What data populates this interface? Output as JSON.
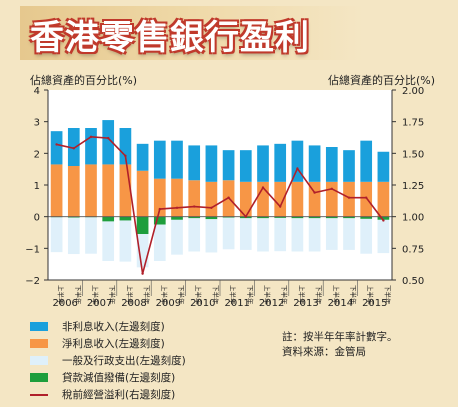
{
  "title": "香港零售銀行盈利",
  "left_axis_label": "佔總資產的百分比(%)",
  "right_axis_label": "佔總資產的百分比(%)",
  "note_lines": [
    "註：按半年年率計數字。",
    "資料來源：金管局"
  ],
  "colors": {
    "non_interest": "#1aa0dc",
    "net_interest": "#f79646",
    "opex": "#dff0fa",
    "provisions": "#1e9e3c",
    "profit_line": "#b0202a"
  },
  "chart_data": {
    "type": "bar",
    "stacked": true,
    "categories": [
      "上半年",
      "下半年",
      "上半年",
      "下半年",
      "上半年",
      "下半年",
      "上半年",
      "下半年",
      "上半年",
      "下半年",
      "上半年",
      "下半年",
      "上半年",
      "下半年",
      "上半年",
      "下半年",
      "上半年",
      "下半年",
      "上半年",
      "下半年"
    ],
    "year_labels": [
      "2006",
      "2007",
      "2008",
      "2009",
      "2010",
      "2011",
      "2012",
      "2013",
      "2014",
      "2015"
    ],
    "left_ylim": [
      -2,
      4
    ],
    "left_yticks": [
      "−2",
      "−1",
      "0",
      "1",
      "2",
      "3",
      "4"
    ],
    "right_ylim": [
      0.5,
      2.0
    ],
    "right_yticks": [
      "0.50",
      "0.75",
      "1.00",
      "1.25",
      "1.50",
      "1.75",
      "2.00"
    ],
    "series": [
      {
        "name": "非利息收入(左邊刻度)",
        "axis": "left",
        "values": [
          1.05,
          1.2,
          1.15,
          1.4,
          1.15,
          0.85,
          1.2,
          1.2,
          1.1,
          1.15,
          0.95,
          1.0,
          1.15,
          1.2,
          1.3,
          1.15,
          1.1,
          1.0,
          1.3,
          0.95
        ]
      },
      {
        "name": "淨利息收入(左邊刻度)",
        "axis": "left",
        "values": [
          1.65,
          1.6,
          1.65,
          1.65,
          1.65,
          1.45,
          1.2,
          1.2,
          1.15,
          1.1,
          1.15,
          1.1,
          1.1,
          1.1,
          1.1,
          1.1,
          1.1,
          1.1,
          1.1,
          1.1
        ]
      },
      {
        "name": "一般及行政支出(左邊刻度)",
        "axis": "left",
        "values": [
          -1.1,
          -1.15,
          -1.15,
          -1.25,
          -1.3,
          -1.05,
          -1.15,
          -1.1,
          -1.05,
          -1.05,
          -1.0,
          -1.0,
          -1.05,
          -1.05,
          -1.05,
          -1.05,
          -1.0,
          -1.0,
          -1.1,
          -1.05
        ]
      },
      {
        "name": "貸款減值撥備(左邊刻度)",
        "axis": "left",
        "values": [
          -0.02,
          -0.03,
          -0.02,
          -0.15,
          -0.12,
          -0.55,
          -0.25,
          -0.1,
          -0.05,
          -0.08,
          -0.03,
          -0.05,
          -0.05,
          -0.04,
          -0.05,
          -0.05,
          -0.05,
          -0.05,
          -0.07,
          -0.1
        ]
      },
      {
        "name": "稅前經營溢利(右邊刻度)",
        "axis": "right",
        "type": "line",
        "values": [
          1.57,
          1.54,
          1.63,
          1.62,
          1.48,
          0.55,
          1.06,
          1.07,
          1.08,
          1.07,
          1.15,
          1.0,
          1.23,
          1.08,
          1.38,
          1.19,
          1.22,
          1.15,
          1.15,
          0.97
        ]
      }
    ]
  }
}
